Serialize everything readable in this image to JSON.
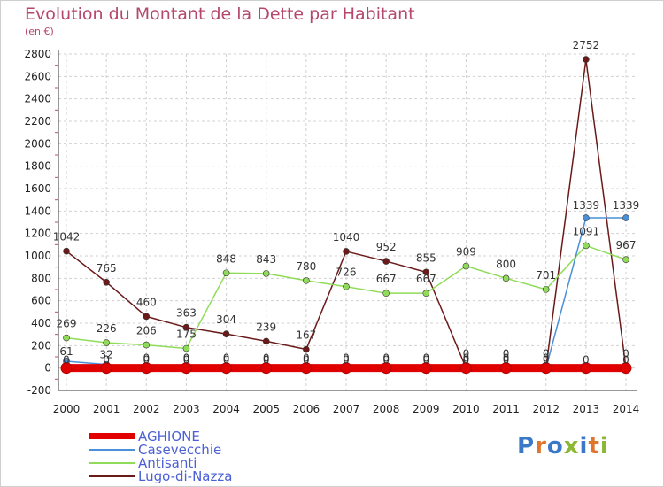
{
  "header": {
    "title": "Evolution du Montant de la Dette par Habitant",
    "subtitle": "(en €)"
  },
  "logo": {
    "text": "Proxiti",
    "colors": [
      "#3a78c8",
      "#e0762b",
      "#3a78c8",
      "#8ab832",
      "#3a78c8",
      "#e0762b",
      "#8ab832"
    ]
  },
  "colors": {
    "title": "#b5476e",
    "grid": "#d0d0d0",
    "axis": "#333333",
    "minor_tick": "#cc4466"
  },
  "chart_data": {
    "type": "line",
    "title": "Evolution du Montant de la Dette par Habitant",
    "subtitle": "(en €)",
    "xlabel": "",
    "ylabel": "",
    "x": [
      "2000",
      "2001",
      "2002",
      "2003",
      "2004",
      "2005",
      "2006",
      "2007",
      "2008",
      "2009",
      "2010",
      "2011",
      "2012",
      "2013",
      "2014"
    ],
    "ylim": [
      -200,
      2800
    ],
    "yticks": [
      "-200",
      "0",
      "200",
      "400",
      "600",
      "800",
      "1000",
      "1200",
      "1400",
      "1600",
      "1800",
      "2000",
      "2200",
      "2400",
      "2600",
      "2800"
    ],
    "grid": true,
    "legend_position": "bottom-left",
    "series": [
      {
        "name": "AGHIONE",
        "color": "#e00000",
        "values": [
          0,
          0,
          0,
          0,
          0,
          0,
          0,
          0,
          0,
          0,
          0,
          0,
          0,
          0,
          0
        ],
        "labels": [
          "0",
          "0",
          "0",
          "0",
          "0",
          "0",
          "0",
          "0",
          "0",
          "0",
          "0",
          "0",
          "0",
          "0",
          "0"
        ]
      },
      {
        "name": "Casevecchie",
        "color": "#4a90d9",
        "values": [
          61,
          32,
          0,
          0,
          0,
          0,
          0,
          0,
          0,
          0,
          0,
          0,
          0,
          1339,
          1339
        ],
        "labels": [
          "61",
          "32",
          "0",
          "0",
          "0",
          "0",
          "0",
          "0",
          "0",
          "0",
          "0",
          "0",
          "0",
          "1339",
          "1339"
        ]
      },
      {
        "name": "Antisanti",
        "color": "#90dc5a",
        "values": [
          269,
          226,
          206,
          175,
          848,
          843,
          780,
          726,
          667,
          667,
          909,
          800,
          701,
          1091,
          967
        ],
        "labels": [
          "269",
          "226",
          "206",
          "175",
          "848",
          "843",
          "780",
          "726",
          "667",
          "667",
          "909",
          "800",
          "701",
          "1091",
          "967"
        ]
      },
      {
        "name": "Lugo-di-Nazza",
        "color": "#6b1a1a",
        "values": [
          1042,
          765,
          460,
          363,
          304,
          239,
          167,
          1040,
          952,
          855,
          0,
          0,
          0,
          2752,
          0
        ],
        "labels": [
          "1042",
          "765",
          "460",
          "363",
          "304",
          "239",
          "167",
          "1040",
          "952",
          "855",
          "0",
          "0",
          "0",
          "2752",
          "0"
        ]
      }
    ]
  }
}
